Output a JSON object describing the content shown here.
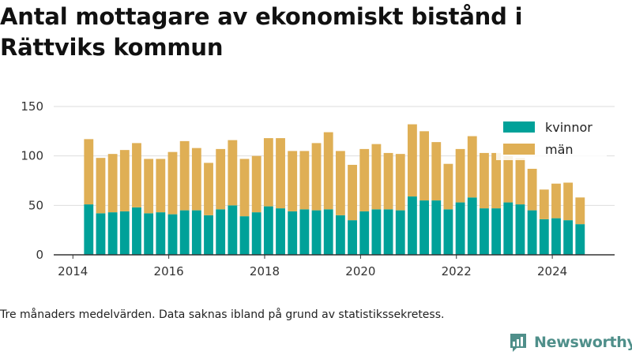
{
  "title": "Antal mottagare av ekonomiskt bistånd i Rättviks kommun",
  "caption": "Tre månaders medelvärden. Data saknas ibland på grund av statistikssekretess.",
  "brand": {
    "name": "Newsworthy",
    "icon": "newsworthy-logo-icon"
  },
  "colors": {
    "kvinnor": "#00a199",
    "man": "#dfaf55",
    "axis": "#333333",
    "grid": "#dddddd"
  },
  "chart_data": {
    "type": "bar",
    "stacked": true,
    "x_axis": {
      "ticks": [
        2014,
        2016,
        2018,
        2020,
        2022,
        2024
      ],
      "range": [
        2013.6,
        2025.3
      ]
    },
    "y_axis": {
      "ticks": [
        0,
        50,
        100,
        150
      ],
      "range": [
        0,
        150
      ]
    },
    "grid": "horizontal",
    "legend_position": "top-right",
    "x": [
      2014.33,
      2014.58,
      2014.83,
      2015.08,
      2015.33,
      2015.58,
      2015.83,
      2016.08,
      2016.33,
      2016.58,
      2016.83,
      2017.08,
      2017.33,
      2017.58,
      2017.83,
      2018.08,
      2018.33,
      2018.58,
      2018.83,
      2019.08,
      2019.33,
      2019.58,
      2019.83,
      2020.08,
      2020.33,
      2020.58,
      2020.83,
      2021.08,
      2021.33,
      2021.58,
      2021.83,
      2022.08,
      2022.33,
      2022.58,
      2022.83,
      2023.08,
      2023.33,
      2023.58,
      2023.83,
      2024.08,
      2024.33,
      2024.58
    ],
    "series": [
      {
        "name": "kvinnor",
        "values": [
          51,
          42,
          43,
          44,
          48,
          42,
          43,
          41,
          45,
          45,
          40,
          46,
          50,
          39,
          43,
          49,
          47,
          44,
          46,
          45,
          46,
          40,
          35,
          44,
          46,
          46,
          45,
          59,
          55,
          55,
          46,
          53,
          58,
          47,
          47,
          53,
          51,
          45,
          36,
          37,
          35,
          31
        ]
      },
      {
        "name": "män",
        "values": [
          66,
          56,
          59,
          62,
          65,
          55,
          54,
          63,
          70,
          63,
          53,
          61,
          66,
          58,
          57,
          69,
          71,
          61,
          59,
          68,
          78,
          65,
          56,
          63,
          66,
          57,
          57,
          73,
          70,
          59,
          46,
          54,
          62,
          56,
          56,
          47,
          47,
          42,
          30,
          35,
          38,
          27
        ]
      }
    ]
  }
}
